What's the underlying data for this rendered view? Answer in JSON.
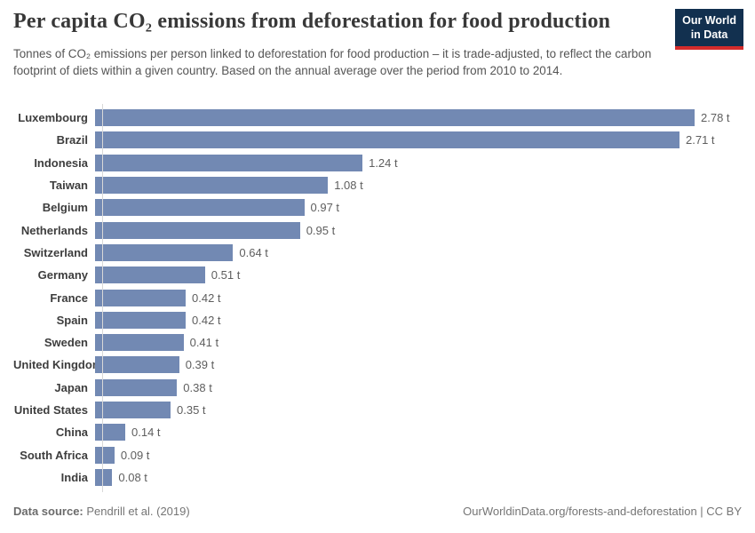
{
  "header": {
    "title": "Per capita CO₂ emissions from deforestation for food production",
    "subtitle": "Tonnes of CO₂ emissions per person linked to deforestation for food production – it is trade-adjusted, to reflect the carbon footprint of diets within a given country. Based on the annual average over the period from 2010 to 2014."
  },
  "logo": {
    "line1": "Our World",
    "line2": "in Data",
    "background_color": "#12304f",
    "stripe_color": "#d42b2b"
  },
  "chart_data": {
    "type": "bar",
    "orientation": "horizontal",
    "title": "Per capita CO₂ emissions from deforestation for food production",
    "categories": [
      "Luxembourg",
      "Brazil",
      "Indonesia",
      "Taiwan",
      "Belgium",
      "Netherlands",
      "Switzerland",
      "Germany",
      "France",
      "Spain",
      "Sweden",
      "United Kingdom",
      "Japan",
      "United States",
      "China",
      "South Africa",
      "India"
    ],
    "values": [
      2.78,
      2.71,
      1.24,
      1.08,
      0.97,
      0.95,
      0.64,
      0.51,
      0.42,
      0.42,
      0.41,
      0.39,
      0.38,
      0.35,
      0.14,
      0.09,
      0.08
    ],
    "value_labels": [
      "2.78 t",
      "2.71 t",
      "1.24 t",
      "1.08 t",
      "0.97 t",
      "0.95 t",
      "0.64 t",
      "0.51 t",
      "0.42 t",
      "0.42 t",
      "0.41 t",
      "0.39 t",
      "0.38 t",
      "0.35 t",
      "0.14 t",
      "0.09 t",
      "0.08 t"
    ],
    "unit": "t",
    "xlim": [
      0,
      2.96
    ],
    "bar_color": "#7289b3",
    "axis_line_color": "#d8d8d8",
    "grid": false,
    "legend": false
  },
  "footer": {
    "source_label": "Data source:",
    "source_value": " Pendrill et al. (2019)",
    "credit": "OurWorldinData.org/forests-and-deforestation | CC BY"
  }
}
